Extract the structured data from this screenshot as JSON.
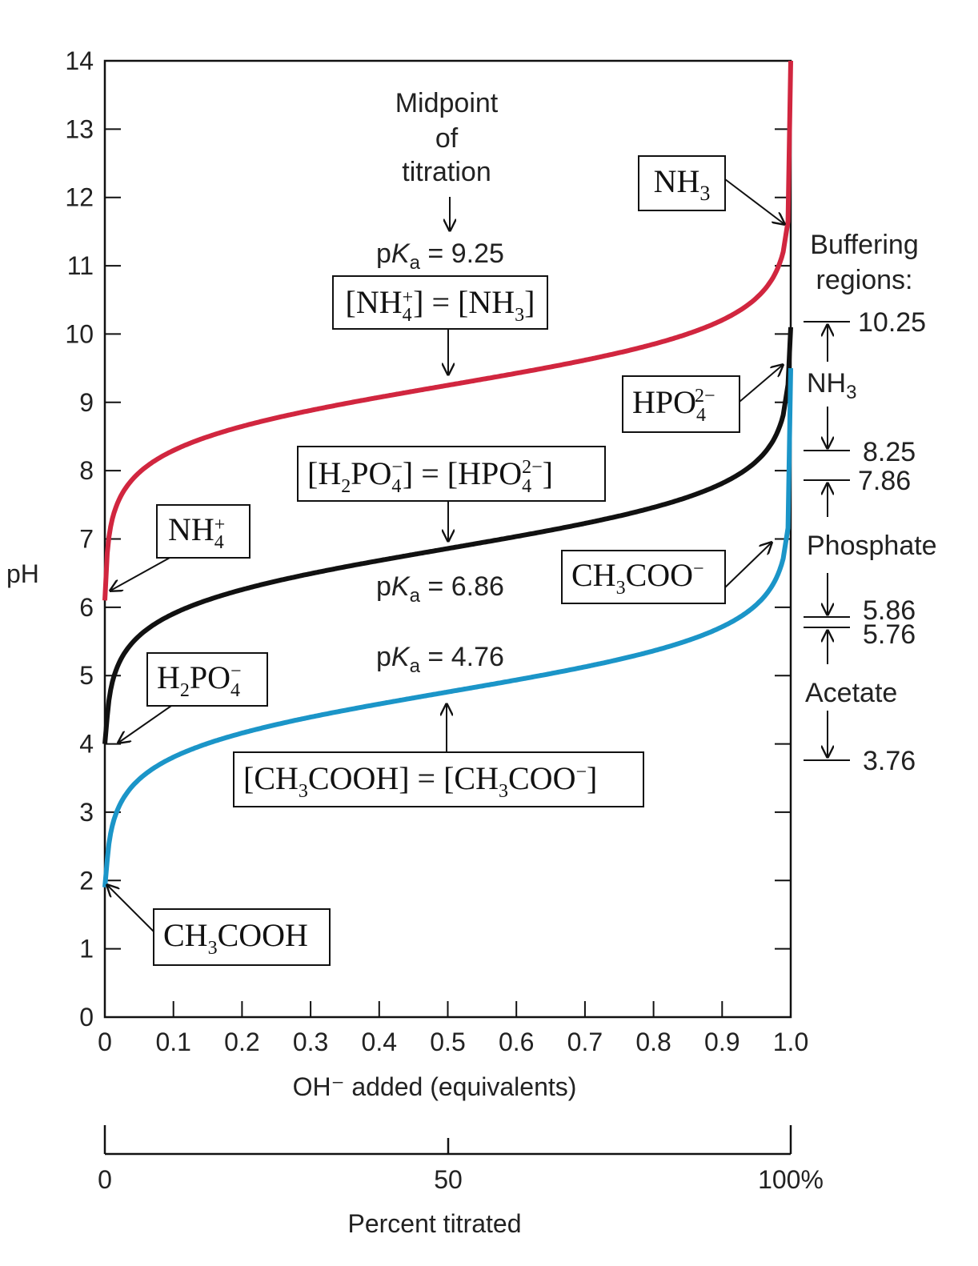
{
  "chart_data": {
    "type": "line",
    "xlabel": "OH⁻ added (equivalents)",
    "ylabel": "pH",
    "xlim": [
      0,
      1.0
    ],
    "ylim": [
      0,
      14
    ],
    "x_ticks": [
      "0",
      "0.1",
      "0.2",
      "0.3",
      "0.4",
      "0.5",
      "0.6",
      "0.7",
      "0.8",
      "0.9",
      "1.0"
    ],
    "y_ticks": [
      "0",
      "1",
      "2",
      "3",
      "4",
      "5",
      "6",
      "7",
      "8",
      "9",
      "10",
      "11",
      "12",
      "13",
      "14"
    ],
    "secondary_axis": {
      "label": "Percent titrated",
      "ticks": [
        "0",
        "50",
        "100%"
      ]
    },
    "series": [
      {
        "key": "ammonia",
        "color": "#d1263f",
        "pKa": 9.25,
        "start_pH": 6.1,
        "x": [
          0.0,
          0.02,
          0.05,
          0.1,
          0.2,
          0.3,
          0.4,
          0.5,
          0.6,
          0.7,
          0.8,
          0.9,
          0.95,
          0.98,
          0.99,
          1.0
        ],
        "y": [
          6.1,
          7.56,
          7.97,
          8.3,
          8.65,
          8.88,
          9.07,
          9.25,
          9.43,
          9.62,
          9.85,
          10.2,
          10.53,
          10.94,
          11.4,
          14.0
        ]
      },
      {
        "key": "phosphate",
        "color": "#111111",
        "pKa": 6.86,
        "start_pH": 4.0,
        "x": [
          0.0,
          0.02,
          0.05,
          0.1,
          0.2,
          0.3,
          0.4,
          0.5,
          0.6,
          0.7,
          0.8,
          0.9,
          0.95,
          0.98,
          0.99,
          1.0
        ],
        "y": [
          4.0,
          5.17,
          5.58,
          5.91,
          6.26,
          6.49,
          6.68,
          6.86,
          7.04,
          7.23,
          7.46,
          7.81,
          8.14,
          8.55,
          8.85,
          10.1
        ]
      },
      {
        "key": "acetate",
        "color": "#1b95c8",
        "pKa": 4.76,
        "start_pH": 1.9,
        "x": [
          0.0,
          0.02,
          0.05,
          0.1,
          0.2,
          0.3,
          0.4,
          0.5,
          0.6,
          0.7,
          0.8,
          0.9,
          0.95,
          0.98,
          0.99,
          1.0
        ],
        "y": [
          1.9,
          3.07,
          3.48,
          3.81,
          4.16,
          4.39,
          4.58,
          4.76,
          4.94,
          5.13,
          5.36,
          5.71,
          6.04,
          6.45,
          6.75,
          9.5
        ]
      }
    ],
    "annotations": {
      "midpoint_l1": "Midpoint",
      "midpoint_l2": "of",
      "midpoint_l3": "titration",
      "pka_prefix": "p",
      "pka_k": "K",
      "pka_sub": "a",
      "pka_nh3": " = 9.25",
      "pka_phos": " = 6.86",
      "pka_acet": " = 4.76",
      "buffering_l1": "Buffering",
      "buffering_l2": "regions:",
      "region_nh3": "NH",
      "region_nh3_sub": "3",
      "region_phos": "Phosphate",
      "region_acet": "Acetate",
      "b_1025": "10.25",
      "b_825": "8.25",
      "b_786": "7.86",
      "b_586": "5.86",
      "b_576": "5.76",
      "b_376": "3.76"
    },
    "species_labels": {
      "nh3": "NH",
      "nh3_sub": "3",
      "nh4": "NH",
      "nh4_sub": "4",
      "nh4_sup": "+",
      "eq_nh": "[NH",
      "eq_nh_sub": "4",
      "eq_nh_sup": "+",
      "eq_nh_mid": "] = [NH",
      "eq_nh_sub2": "3",
      "eq_nh_end": "]",
      "hpo4": "HPO",
      "hpo4_sub": "4",
      "hpo4_sup": "2−",
      "h2po4": "H",
      "h2po4_sub1": "2",
      "h2po4_mid": "PO",
      "h2po4_sub2": "4",
      "h2po4_sup": "−",
      "eq_ph_a": "[H",
      "eq_ph_sub1": "2",
      "eq_ph_b": "PO",
      "eq_ph_sub2": "4",
      "eq_ph_sup1": "−",
      "eq_ph_c": "] = [HPO",
      "eq_ph_sub3": "4",
      "eq_ph_sup2": "2−",
      "eq_ph_d": "]",
      "ch3coo": "CH",
      "ch3coo_sub": "3",
      "ch3coo_mid": "COO",
      "ch3coo_sup": "−",
      "ch3cooh": "CH",
      "ch3cooh_sub": "3",
      "ch3cooh_mid": "COOH",
      "eq_ac_a": "[CH",
      "eq_ac_sub1": "3",
      "eq_ac_b": "COOH] = [CH",
      "eq_ac_sub2": "3",
      "eq_ac_c": "COO",
      "eq_ac_sup": "−",
      "eq_ac_d": "]"
    }
  }
}
